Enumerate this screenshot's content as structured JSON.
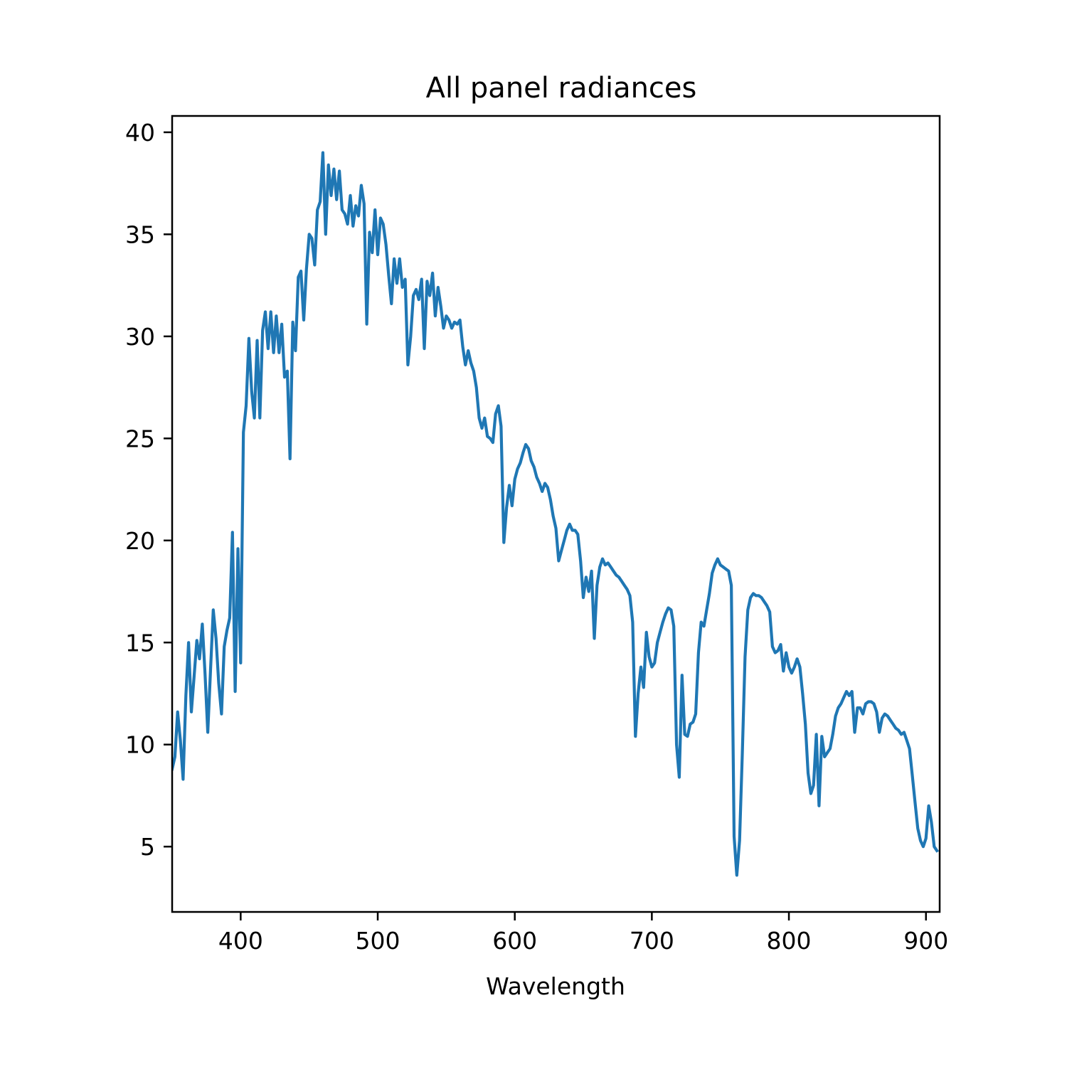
{
  "chart_data": {
    "type": "line",
    "title": "All panel radiances",
    "xlabel": "Wavelength",
    "ylabel": "",
    "xlim": [
      350,
      910
    ],
    "ylim": [
      1.8,
      40.8
    ],
    "xticks": [
      400,
      500,
      600,
      700,
      800,
      900
    ],
    "yticks": [
      5,
      10,
      15,
      20,
      25,
      30,
      35,
      40
    ],
    "grid": false,
    "legend": "none",
    "series_color": "#1f77b4",
    "series": [
      {
        "points": [
          [
            350,
            8.8
          ],
          [
            352,
            9.4
          ],
          [
            354,
            11.6
          ],
          [
            356,
            10.2
          ],
          [
            358,
            8.3
          ],
          [
            360,
            12.4
          ],
          [
            362,
            15.0
          ],
          [
            364,
            11.6
          ],
          [
            366,
            13.3
          ],
          [
            368,
            15.1
          ],
          [
            370,
            14.2
          ],
          [
            372,
            15.9
          ],
          [
            374,
            13.5
          ],
          [
            376,
            10.6
          ],
          [
            378,
            13.6
          ],
          [
            380,
            16.6
          ],
          [
            382,
            15.2
          ],
          [
            384,
            13.0
          ],
          [
            386,
            11.5
          ],
          [
            388,
            14.8
          ],
          [
            390,
            15.6
          ],
          [
            392,
            16.2
          ],
          [
            394,
            20.4
          ],
          [
            396,
            12.6
          ],
          [
            398,
            19.6
          ],
          [
            400,
            14.0
          ],
          [
            402,
            25.3
          ],
          [
            404,
            26.6
          ],
          [
            406,
            29.9
          ],
          [
            408,
            27.3
          ],
          [
            410,
            26.0
          ],
          [
            412,
            29.8
          ],
          [
            414,
            26.0
          ],
          [
            416,
            30.3
          ],
          [
            418,
            31.2
          ],
          [
            420,
            29.4
          ],
          [
            422,
            31.2
          ],
          [
            424,
            29.2
          ],
          [
            426,
            31.0
          ],
          [
            428,
            29.2
          ],
          [
            430,
            30.6
          ],
          [
            432,
            28.0
          ],
          [
            434,
            28.3
          ],
          [
            436,
            24.0
          ],
          [
            438,
            30.7
          ],
          [
            440,
            29.3
          ],
          [
            442,
            32.9
          ],
          [
            444,
            33.2
          ],
          [
            446,
            30.8
          ],
          [
            448,
            33.3
          ],
          [
            450,
            35.0
          ],
          [
            452,
            34.8
          ],
          [
            454,
            33.5
          ],
          [
            456,
            36.2
          ],
          [
            458,
            36.6
          ],
          [
            460,
            39.0
          ],
          [
            462,
            35.0
          ],
          [
            464,
            38.4
          ],
          [
            466,
            36.9
          ],
          [
            468,
            38.2
          ],
          [
            470,
            36.7
          ],
          [
            472,
            38.1
          ],
          [
            474,
            36.2
          ],
          [
            476,
            36.0
          ],
          [
            478,
            35.5
          ],
          [
            480,
            36.9
          ],
          [
            482,
            35.4
          ],
          [
            484,
            36.4
          ],
          [
            486,
            35.9
          ],
          [
            488,
            37.4
          ],
          [
            490,
            36.5
          ],
          [
            492,
            30.6
          ],
          [
            494,
            35.1
          ],
          [
            496,
            34.1
          ],
          [
            498,
            36.2
          ],
          [
            500,
            34.0
          ],
          [
            502,
            35.8
          ],
          [
            504,
            35.5
          ],
          [
            506,
            34.5
          ],
          [
            508,
            33.0
          ],
          [
            510,
            31.6
          ],
          [
            512,
            33.8
          ],
          [
            514,
            32.6
          ],
          [
            516,
            33.8
          ],
          [
            518,
            32.4
          ],
          [
            520,
            32.8
          ],
          [
            522,
            28.6
          ],
          [
            524,
            30.0
          ],
          [
            526,
            32.0
          ],
          [
            528,
            32.3
          ],
          [
            530,
            31.8
          ],
          [
            532,
            32.8
          ],
          [
            534,
            29.4
          ],
          [
            536,
            32.7
          ],
          [
            538,
            32.0
          ],
          [
            540,
            33.1
          ],
          [
            542,
            31.0
          ],
          [
            544,
            32.4
          ],
          [
            546,
            31.5
          ],
          [
            548,
            30.4
          ],
          [
            550,
            31.0
          ],
          [
            552,
            30.8
          ],
          [
            554,
            30.4
          ],
          [
            556,
            30.7
          ],
          [
            558,
            30.6
          ],
          [
            560,
            30.8
          ],
          [
            562,
            29.5
          ],
          [
            564,
            28.6
          ],
          [
            566,
            29.3
          ],
          [
            568,
            28.7
          ],
          [
            570,
            28.3
          ],
          [
            572,
            27.5
          ],
          [
            574,
            26.0
          ],
          [
            576,
            25.5
          ],
          [
            578,
            26.0
          ],
          [
            580,
            25.1
          ],
          [
            582,
            25.0
          ],
          [
            584,
            24.8
          ],
          [
            586,
            26.2
          ],
          [
            588,
            26.6
          ],
          [
            590,
            25.6
          ],
          [
            592,
            19.9
          ],
          [
            594,
            21.6
          ],
          [
            596,
            22.7
          ],
          [
            598,
            21.7
          ],
          [
            600,
            23.0
          ],
          [
            602,
            23.5
          ],
          [
            604,
            23.8
          ],
          [
            606,
            24.3
          ],
          [
            608,
            24.7
          ],
          [
            610,
            24.5
          ],
          [
            612,
            23.9
          ],
          [
            614,
            23.6
          ],
          [
            616,
            23.1
          ],
          [
            618,
            22.8
          ],
          [
            620,
            22.4
          ],
          [
            622,
            22.8
          ],
          [
            624,
            22.6
          ],
          [
            626,
            22.0
          ],
          [
            628,
            21.2
          ],
          [
            630,
            20.6
          ],
          [
            632,
            19.0
          ],
          [
            634,
            19.5
          ],
          [
            636,
            20.0
          ],
          [
            638,
            20.5
          ],
          [
            640,
            20.8
          ],
          [
            642,
            20.5
          ],
          [
            644,
            20.5
          ],
          [
            646,
            20.3
          ],
          [
            648,
            19.0
          ],
          [
            650,
            17.2
          ],
          [
            652,
            18.2
          ],
          [
            654,
            17.5
          ],
          [
            656,
            18.5
          ],
          [
            658,
            15.2
          ],
          [
            660,
            17.8
          ],
          [
            662,
            18.7
          ],
          [
            664,
            19.1
          ],
          [
            666,
            18.8
          ],
          [
            668,
            18.9
          ],
          [
            670,
            18.7
          ],
          [
            672,
            18.5
          ],
          [
            674,
            18.3
          ],
          [
            676,
            18.2
          ],
          [
            678,
            18.0
          ],
          [
            680,
            17.8
          ],
          [
            682,
            17.6
          ],
          [
            684,
            17.3
          ],
          [
            686,
            16.0
          ],
          [
            688,
            10.4
          ],
          [
            690,
            12.5
          ],
          [
            692,
            13.8
          ],
          [
            694,
            12.8
          ],
          [
            696,
            15.5
          ],
          [
            698,
            14.3
          ],
          [
            700,
            13.8
          ],
          [
            702,
            14.0
          ],
          [
            704,
            15.0
          ],
          [
            706,
            15.5
          ],
          [
            708,
            16.0
          ],
          [
            710,
            16.4
          ],
          [
            712,
            16.7
          ],
          [
            714,
            16.6
          ],
          [
            716,
            15.8
          ],
          [
            718,
            10.0
          ],
          [
            720,
            8.4
          ],
          [
            722,
            13.4
          ],
          [
            724,
            10.5
          ],
          [
            726,
            10.4
          ],
          [
            728,
            11.0
          ],
          [
            730,
            11.1
          ],
          [
            732,
            11.5
          ],
          [
            734,
            14.5
          ],
          [
            736,
            16.0
          ],
          [
            738,
            15.8
          ],
          [
            740,
            16.6
          ],
          [
            742,
            17.4
          ],
          [
            744,
            18.4
          ],
          [
            746,
            18.8
          ],
          [
            748,
            19.1
          ],
          [
            750,
            18.8
          ],
          [
            752,
            18.7
          ],
          [
            754,
            18.6
          ],
          [
            756,
            18.5
          ],
          [
            758,
            17.8
          ],
          [
            760,
            5.5
          ],
          [
            762,
            3.6
          ],
          [
            764,
            5.3
          ],
          [
            766,
            9.5
          ],
          [
            768,
            14.3
          ],
          [
            770,
            16.6
          ],
          [
            772,
            17.2
          ],
          [
            774,
            17.4
          ],
          [
            776,
            17.3
          ],
          [
            778,
            17.3
          ],
          [
            780,
            17.2
          ],
          [
            782,
            17.0
          ],
          [
            784,
            16.8
          ],
          [
            786,
            16.5
          ],
          [
            788,
            14.8
          ],
          [
            790,
            14.5
          ],
          [
            792,
            14.6
          ],
          [
            794,
            14.9
          ],
          [
            796,
            13.6
          ],
          [
            798,
            14.5
          ],
          [
            800,
            13.8
          ],
          [
            802,
            13.5
          ],
          [
            804,
            13.8
          ],
          [
            806,
            14.2
          ],
          [
            808,
            13.8
          ],
          [
            810,
            12.5
          ],
          [
            812,
            11.0
          ],
          [
            814,
            8.6
          ],
          [
            816,
            7.6
          ],
          [
            818,
            8.0
          ],
          [
            820,
            10.5
          ],
          [
            822,
            7.0
          ],
          [
            824,
            10.4
          ],
          [
            826,
            9.4
          ],
          [
            828,
            9.6
          ],
          [
            830,
            9.8
          ],
          [
            832,
            10.5
          ],
          [
            834,
            11.4
          ],
          [
            836,
            11.8
          ],
          [
            838,
            12.0
          ],
          [
            840,
            12.3
          ],
          [
            842,
            12.6
          ],
          [
            844,
            12.4
          ],
          [
            846,
            12.6
          ],
          [
            848,
            10.6
          ],
          [
            850,
            11.8
          ],
          [
            852,
            11.8
          ],
          [
            854,
            11.5
          ],
          [
            856,
            12.0
          ],
          [
            858,
            12.1
          ],
          [
            860,
            12.1
          ],
          [
            862,
            12.0
          ],
          [
            864,
            11.6
          ],
          [
            866,
            10.6
          ],
          [
            868,
            11.3
          ],
          [
            870,
            11.5
          ],
          [
            872,
            11.4
          ],
          [
            874,
            11.2
          ],
          [
            876,
            11.0
          ],
          [
            878,
            10.8
          ],
          [
            880,
            10.7
          ],
          [
            882,
            10.5
          ],
          [
            884,
            10.6
          ],
          [
            886,
            10.2
          ],
          [
            888,
            9.8
          ],
          [
            890,
            8.5
          ],
          [
            892,
            7.2
          ],
          [
            894,
            5.9
          ],
          [
            896,
            5.3
          ],
          [
            898,
            5.0
          ],
          [
            900,
            5.4
          ],
          [
            902,
            7.0
          ],
          [
            904,
            6.2
          ],
          [
            906,
            5.0
          ],
          [
            908,
            4.8
          ]
        ]
      }
    ]
  }
}
